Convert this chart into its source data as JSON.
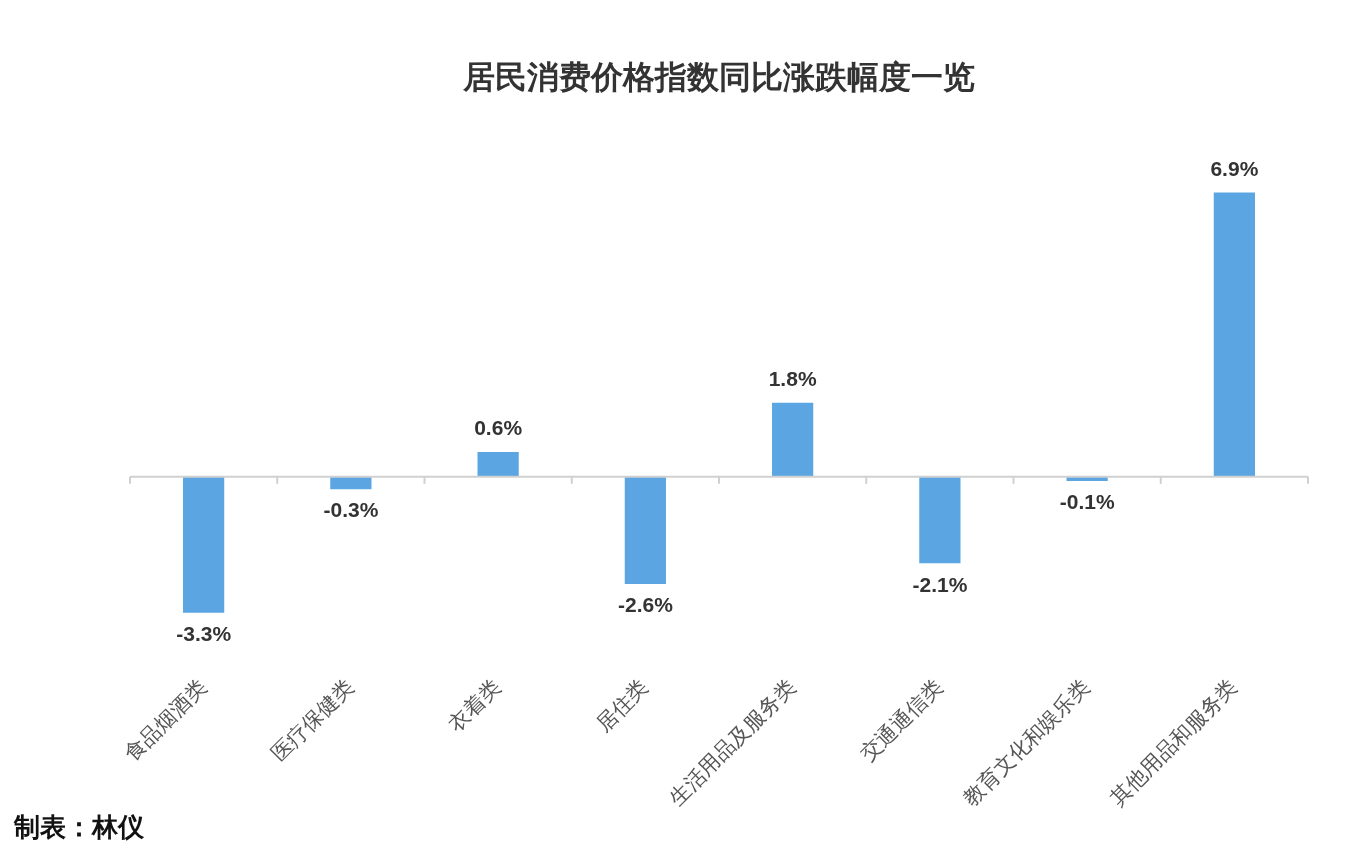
{
  "chart_data": {
    "type": "bar",
    "title": "居民消费价格指数同比涨跌幅度一览",
    "categories": [
      "食品烟酒类",
      "医疗保健类",
      "衣着类",
      "居住类",
      "生活用品及服务类",
      "交通通信类",
      "教育文化和娱乐类",
      "其他用品和服务类"
    ],
    "values": [
      -3.3,
      -0.3,
      0.6,
      -2.6,
      1.8,
      -2.1,
      -0.1,
      6.9
    ],
    "value_labels": [
      "-3.3%",
      "-0.3%",
      "0.6%",
      "-2.6%",
      "1.8%",
      "-2.1%",
      "-0.1%",
      "6.9%"
    ],
    "color": "#5ba6e2",
    "grid": false,
    "legend": false,
    "annotations": [
      "制表：林仪"
    ]
  }
}
